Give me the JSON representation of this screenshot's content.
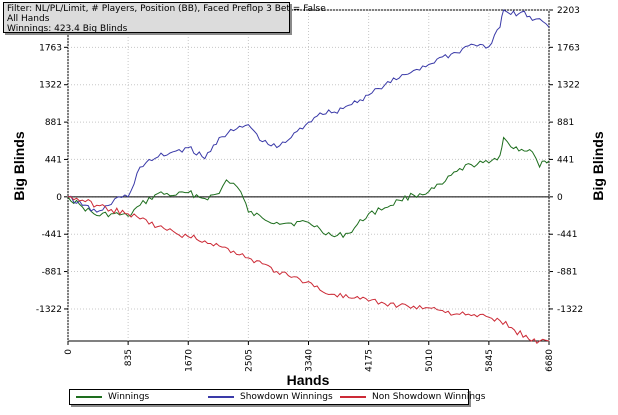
{
  "info": {
    "filter": "Filter: NL/PL/Limit, # Players, Position (BB), Faced Preflop 3 Bet = False",
    "scope": "All Hands",
    "winnings": "Winnings: 423.4 Big Blinds"
  },
  "chart_data": {
    "type": "line",
    "xlabel": "Hands",
    "ylabel": "Big Blinds",
    "xlim": [
      0,
      6680
    ],
    "ylim": [
      -1700,
      2203
    ],
    "x_ticks": [
      "0",
      "835",
      "1670",
      "2505",
      "3340",
      "4175",
      "5010",
      "5845",
      "6680"
    ],
    "y_ticks": [
      "2203",
      "1763",
      "1322",
      "881",
      "441",
      "0",
      "-441",
      "-881",
      "-1322"
    ],
    "grid": true,
    "legend_position": "bottom",
    "series": [
      {
        "name": "Winnings",
        "color": "#1e6e1e",
        "x": [
          0,
          200,
          400,
          600,
          835,
          1000,
          1250,
          1500,
          1670,
          1900,
          2100,
          2200,
          2300,
          2400,
          2505,
          2700,
          2900,
          3100,
          3340,
          3500,
          3700,
          3900,
          4175,
          4400,
          4600,
          4800,
          5010,
          5200,
          5400,
          5600,
          5845,
          6000,
          6050,
          6150,
          6300,
          6450,
          6550,
          6620,
          6680
        ],
        "y": [
          0,
          -120,
          -220,
          -200,
          -230,
          -100,
          40,
          20,
          50,
          -20,
          40,
          200,
          160,
          60,
          -180,
          -250,
          -300,
          -310,
          -300,
          -380,
          -470,
          -430,
          -200,
          -130,
          -40,
          20,
          60,
          150,
          300,
          380,
          400,
          490,
          700,
          590,
          560,
          530,
          350,
          423,
          423
        ]
      },
      {
        "name": "Showdown Winnings",
        "color": "#3a3aa8",
        "x": [
          0,
          200,
          400,
          600,
          700,
          835,
          1000,
          1250,
          1500,
          1670,
          1900,
          2100,
          2300,
          2505,
          2700,
          2900,
          3100,
          3340,
          3500,
          3700,
          3900,
          4175,
          4400,
          4600,
          4800,
          5010,
          5200,
          5400,
          5600,
          5845,
          6000,
          6050,
          6150,
          6300,
          6450,
          6550,
          6680
        ],
        "y": [
          0,
          -100,
          -180,
          -90,
          0,
          0,
          350,
          470,
          540,
          580,
          450,
          700,
          780,
          850,
          650,
          580,
          700,
          880,
          990,
          1000,
          1080,
          1200,
          1320,
          1400,
          1490,
          1560,
          1650,
          1700,
          1800,
          1770,
          2000,
          2203,
          2150,
          2180,
          2080,
          2100,
          2000
        ]
      },
      {
        "name": "Non Showdown Winnings",
        "color": "#cc2a36",
        "x": [
          0,
          200,
          400,
          600,
          835,
          1000,
          1250,
          1500,
          1670,
          1900,
          2100,
          2300,
          2505,
          2700,
          2900,
          3100,
          3340,
          3500,
          3700,
          3900,
          4175,
          4400,
          4600,
          4800,
          5010,
          5200,
          5400,
          5600,
          5845,
          6000,
          6200,
          6400,
          6550,
          6680
        ],
        "y": [
          0,
          -40,
          -100,
          -150,
          -200,
          -260,
          -350,
          -430,
          -470,
          -520,
          -580,
          -640,
          -720,
          -790,
          -880,
          -950,
          -1000,
          -1100,
          -1150,
          -1190,
          -1230,
          -1260,
          -1280,
          -1290,
          -1310,
          -1340,
          -1380,
          -1400,
          -1420,
          -1460,
          -1570,
          -1680,
          -1700,
          -1700
        ]
      }
    ]
  }
}
